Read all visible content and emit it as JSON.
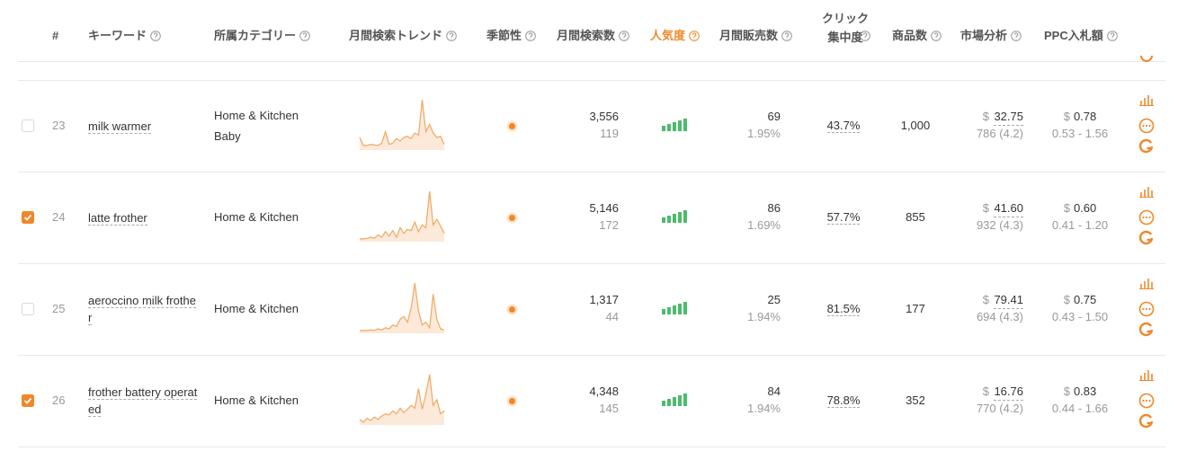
{
  "header": {
    "columns": [
      "#",
      "キーワード",
      "所属カテゴリー",
      "月間検索トレンド",
      "季節性",
      "月間検索数",
      "人気度",
      "月間販売数",
      "クリック\n集中度",
      "商品数",
      "市場分析",
      "PPC入札額"
    ]
  },
  "rows": [
    {
      "number": "23",
      "keyword": "milk warmer",
      "categories": [
        "Home & Kitchen",
        "Baby"
      ],
      "trend": [
        22,
        8,
        8,
        10,
        9,
        8,
        12,
        32,
        10,
        12,
        20,
        16,
        22,
        24,
        20,
        30,
        26,
        88,
        32,
        45,
        30,
        22,
        24,
        10
      ],
      "monthly_searches": "3,556",
      "daily_searches": "119",
      "monthly_sales": "69",
      "sales_rate": "1.95%",
      "click_concentration": "43.7%",
      "product_count": "1,000",
      "currency": "$",
      "price": "32.75",
      "reviews": "786 (4.2)",
      "ppc_currency": "$",
      "ppc": "0.78",
      "ppc_range": "0.53 - 1.56",
      "checked": false
    },
    {
      "number": "24",
      "keyword": "latte frother",
      "categories": [
        "Home & Kitchen"
      ],
      "trend": [
        5,
        5,
        6,
        8,
        6,
        12,
        8,
        18,
        10,
        20,
        8,
        25,
        15,
        22,
        20,
        35,
        18,
        30,
        25,
        90,
        30,
        40,
        28,
        15
      ],
      "monthly_searches": "5,146",
      "daily_searches": "172",
      "monthly_sales": "86",
      "sales_rate": "1.69%",
      "click_concentration": "57.7%",
      "product_count": "855",
      "currency": "$",
      "price": "41.60",
      "reviews": "932 (4.3)",
      "ppc_currency": "$",
      "ppc": "0.60",
      "ppc_range": "0.41 - 1.20",
      "checked": true
    },
    {
      "number": "25",
      "keyword": "aeroccino milk frother",
      "categories": [
        "Home & Kitchen"
      ],
      "trend": [
        5,
        5,
        5,
        6,
        5,
        8,
        6,
        10,
        8,
        15,
        12,
        25,
        30,
        20,
        45,
        90,
        40,
        15,
        20,
        10,
        70,
        25,
        8,
        6
      ],
      "monthly_searches": "1,317",
      "daily_searches": "44",
      "monthly_sales": "25",
      "sales_rate": "1.94%",
      "click_concentration": "81.5%",
      "product_count": "177",
      "currency": "$",
      "price": "79.41",
      "reviews": "694 (4.3)",
      "ppc_currency": "$",
      "ppc": "0.75",
      "ppc_range": "0.43 - 1.50",
      "checked": false
    },
    {
      "number": "26",
      "keyword": "frother battery operated",
      "categories": [
        "Home & Kitchen"
      ],
      "trend": [
        10,
        5,
        12,
        8,
        14,
        10,
        16,
        20,
        18,
        25,
        20,
        30,
        22,
        28,
        35,
        30,
        65,
        28,
        55,
        90,
        35,
        45,
        20,
        25
      ],
      "monthly_searches": "4,348",
      "daily_searches": "145",
      "monthly_sales": "84",
      "sales_rate": "1.94%",
      "click_concentration": "78.8%",
      "product_count": "352",
      "currency": "$",
      "price": "16.76",
      "reviews": "770 (4.2)",
      "ppc_currency": "$",
      "ppc": "0.83",
      "ppc_range": "0.44 - 1.66",
      "checked": true
    }
  ]
}
